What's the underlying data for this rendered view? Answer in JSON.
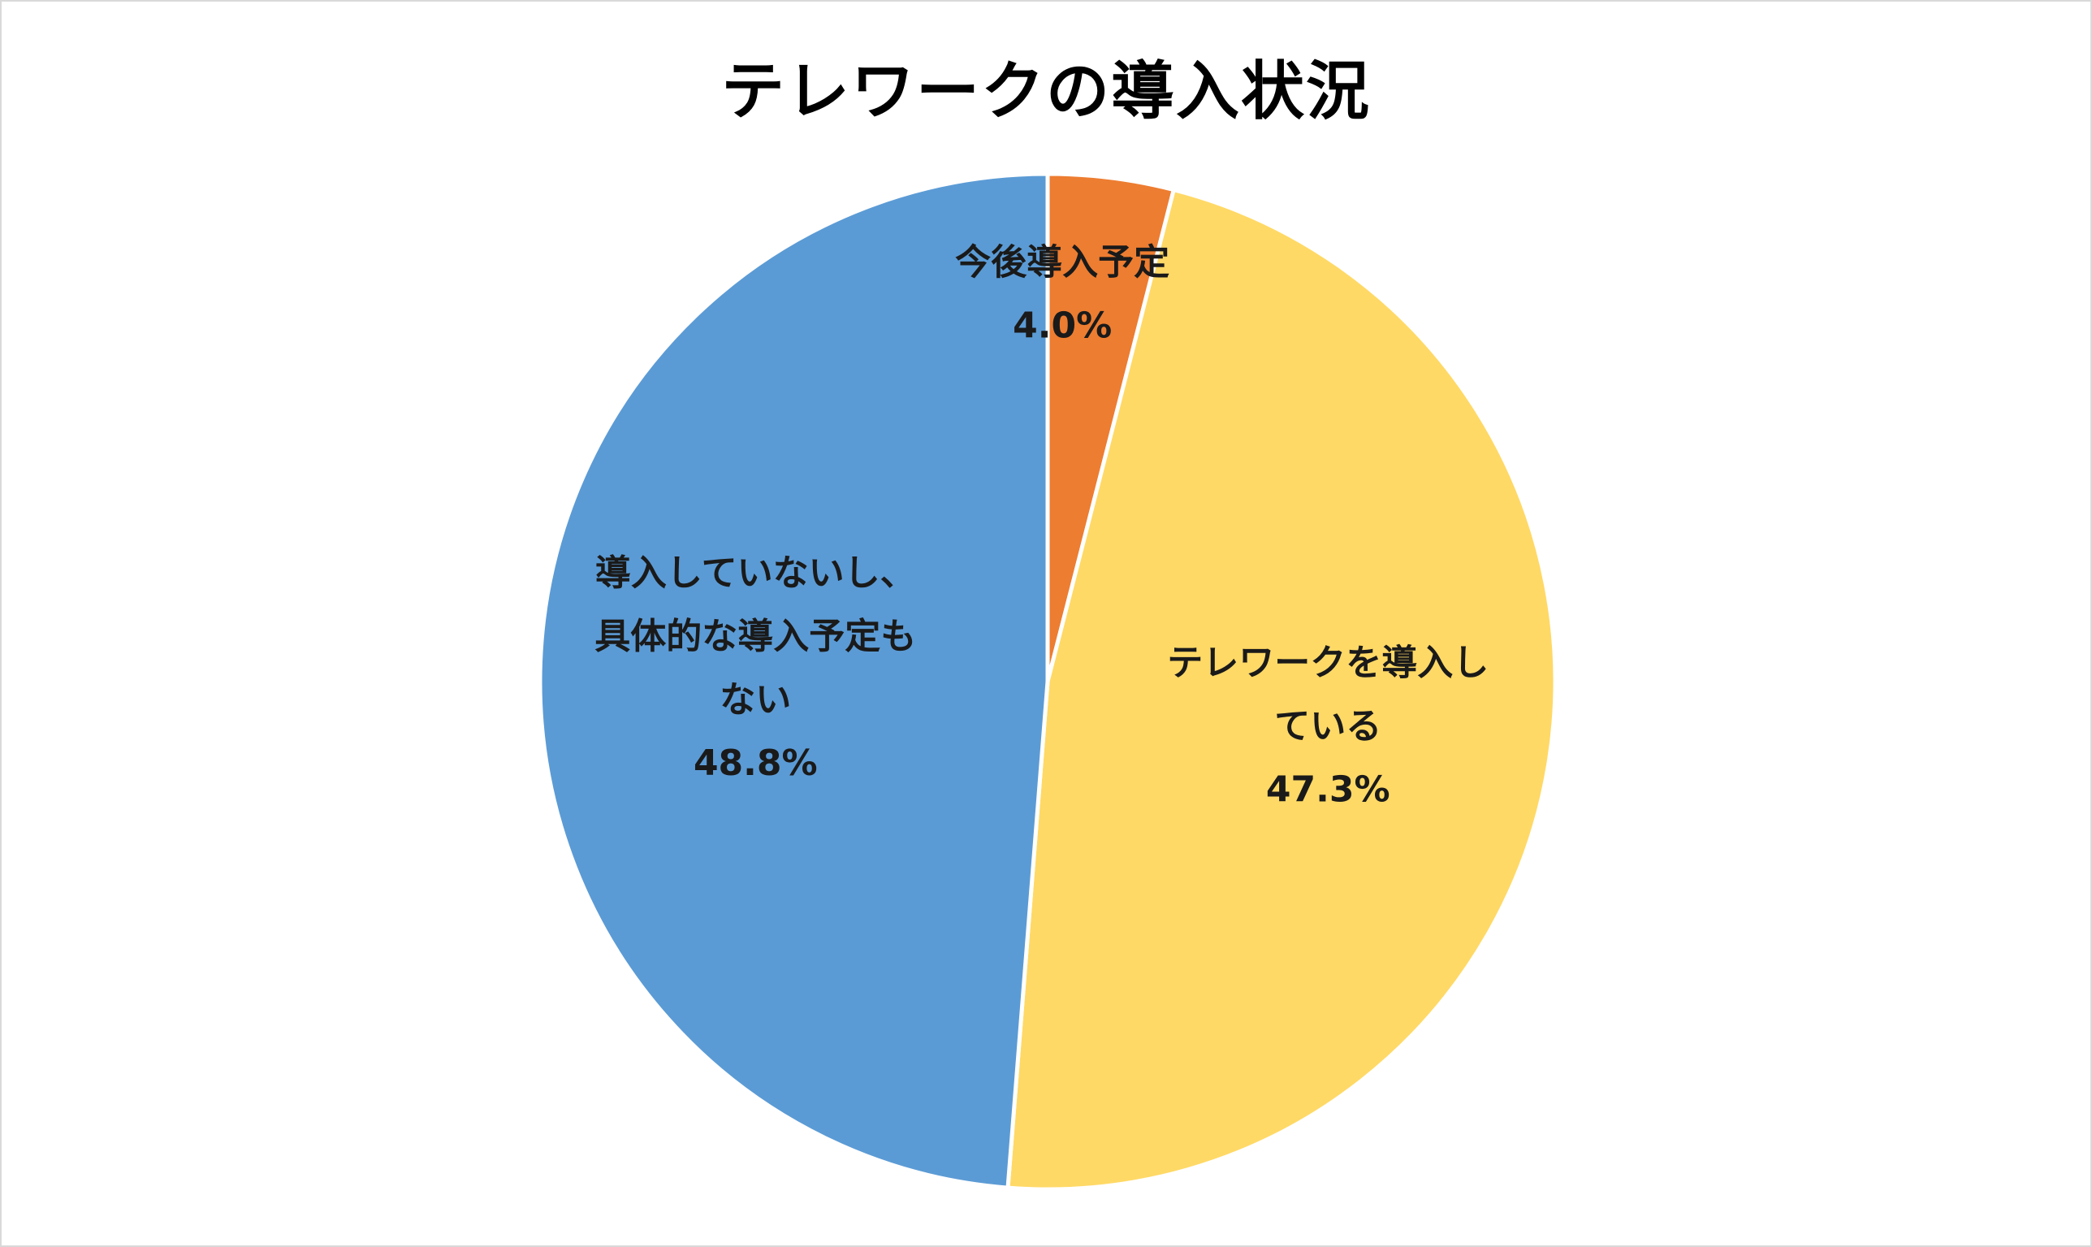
{
  "chart_data": {
    "type": "pie",
    "title": "テレワークの導入状況",
    "start_angle_deg": 0,
    "direction": "clockwise",
    "slices": [
      {
        "name": "今後導入予定",
        "value": 4.0,
        "value_label": "4.0%",
        "color": "#ED7D31",
        "label_lines": [
          "今後導入予定"
        ]
      },
      {
        "name": "テレワークを導入している",
        "value": 47.3,
        "value_label": "47.3%",
        "color": "#FFD966",
        "label_lines": [
          "テレワークを導入し",
          "ている"
        ]
      },
      {
        "name": "導入していないし、具体的な導入予定もない",
        "value": 48.8,
        "value_label": "48.8%",
        "color": "#5B9BD5",
        "label_lines": [
          "導入していないし、",
          "具体的な導入予定も",
          "ない"
        ]
      }
    ],
    "slice_border_color": "#ffffff",
    "legend": "none",
    "data_labels": "inside"
  }
}
